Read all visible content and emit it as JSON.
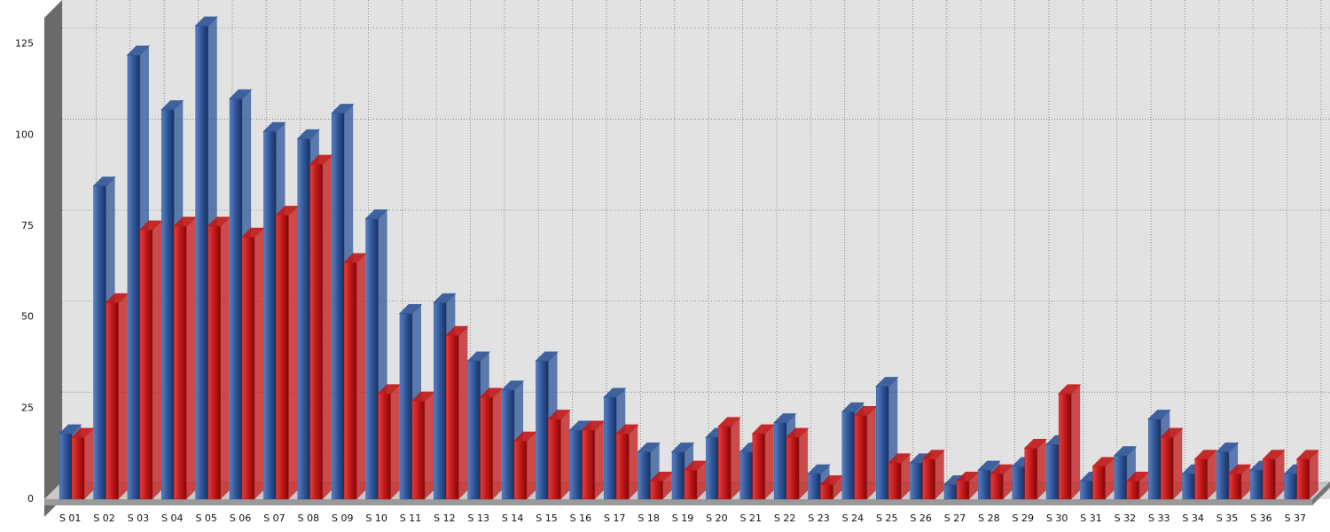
{
  "chart_data": {
    "type": "bar3d",
    "categories": [
      "S 01",
      "S 02",
      "S 03",
      "S 04",
      "S 05",
      "S 06",
      "S 07",
      "S 08",
      "S 09",
      "S 10",
      "S 11",
      "S 12",
      "S 13",
      "S 14",
      "S 15",
      "S 16",
      "S 17",
      "S 18",
      "S 19",
      "S 20",
      "S 21",
      "S 22",
      "S 23",
      "S 24",
      "S 25",
      "S 26",
      "S 27",
      "S 28",
      "S 29",
      "S 30",
      "S 31",
      "S 32",
      "S 33",
      "S 34",
      "S 35",
      "S 36",
      "S 37"
    ],
    "series": [
      {
        "color": "#2e5597",
        "values": [
          18,
          86,
          122,
          107,
          130,
          110,
          101,
          99,
          106,
          77,
          51,
          54,
          38,
          30,
          38,
          19,
          28,
          13,
          13,
          17,
          13,
          21,
          7,
          24,
          31,
          10,
          4,
          8,
          9,
          15,
          5,
          12,
          22,
          7,
          13,
          8,
          7
        ]
      },
      {
        "color": "#c01818",
        "values": [
          17,
          54,
          74,
          75,
          75,
          72,
          78,
          92,
          65,
          29,
          27,
          45,
          28,
          16,
          22,
          19,
          18,
          5,
          8,
          20,
          18,
          17,
          4,
          23,
          10,
          11,
          5,
          7,
          14,
          29,
          9,
          5,
          17,
          11,
          7,
          11,
          11
        ]
      }
    ],
    "ylim": [
      0,
      131
    ],
    "yticks": [
      0,
      25,
      50,
      75,
      100,
      125
    ],
    "grid": true
  }
}
